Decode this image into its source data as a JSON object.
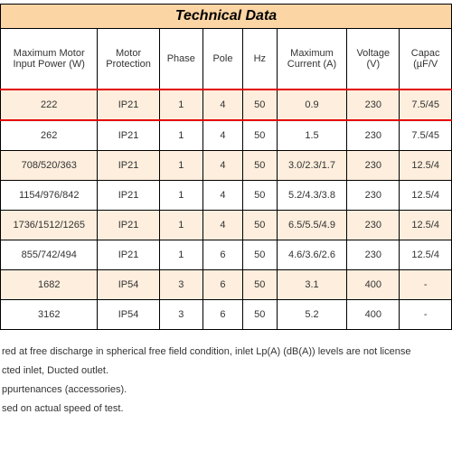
{
  "table": {
    "title": "Technical Data",
    "title_bg": "#fcd5a5",
    "highlight_border": "#e20000",
    "odd_row_bg": "#fdeedd",
    "even_row_bg": "#ffffff",
    "columns": [
      "Maximum Motor Input Power (W)",
      "Motor Protection",
      "Phase",
      "Pole",
      "Hz",
      "Maximum Current (A)",
      "Voltage (V)",
      "Capac (µF/V"
    ],
    "rows": [
      {
        "highlight": true,
        "cells": [
          "222",
          "IP21",
          "1",
          "4",
          "50",
          "0.9",
          "230",
          "7.5/45"
        ]
      },
      {
        "highlight": false,
        "cells": [
          "262",
          "IP21",
          "1",
          "4",
          "50",
          "1.5",
          "230",
          "7.5/45"
        ]
      },
      {
        "highlight": false,
        "cells": [
          "708/520/363",
          "IP21",
          "1",
          "4",
          "50",
          "3.0/2.3/1.7",
          "230",
          "12.5/4"
        ]
      },
      {
        "highlight": false,
        "cells": [
          "1154/976/842",
          "IP21",
          "1",
          "4",
          "50",
          "5.2/4.3/3.8",
          "230",
          "12.5/4"
        ]
      },
      {
        "highlight": false,
        "cells": [
          "1736/1512/1265",
          "IP21",
          "1",
          "4",
          "50",
          "6.5/5.5/4.9",
          "230",
          "12.5/4"
        ]
      },
      {
        "highlight": false,
        "cells": [
          "855/742/494",
          "IP21",
          "1",
          "6",
          "50",
          "4.6/3.6/2.6",
          "230",
          "12.5/4"
        ]
      },
      {
        "highlight": false,
        "cells": [
          "1682",
          "IP54",
          "3",
          "6",
          "50",
          "3.1",
          "400",
          "-"
        ]
      },
      {
        "highlight": false,
        "cells": [
          "3162",
          "IP54",
          "3",
          "6",
          "50",
          "5.2",
          "400",
          "-"
        ]
      }
    ]
  },
  "notes": [
    "red at free discharge in spherical free field condition, inlet Lp(A) (dB(A)) levels are not license",
    "cted inlet, Ducted outlet.",
    "ppurtenances (accessories).",
    "sed on actual speed of test."
  ]
}
